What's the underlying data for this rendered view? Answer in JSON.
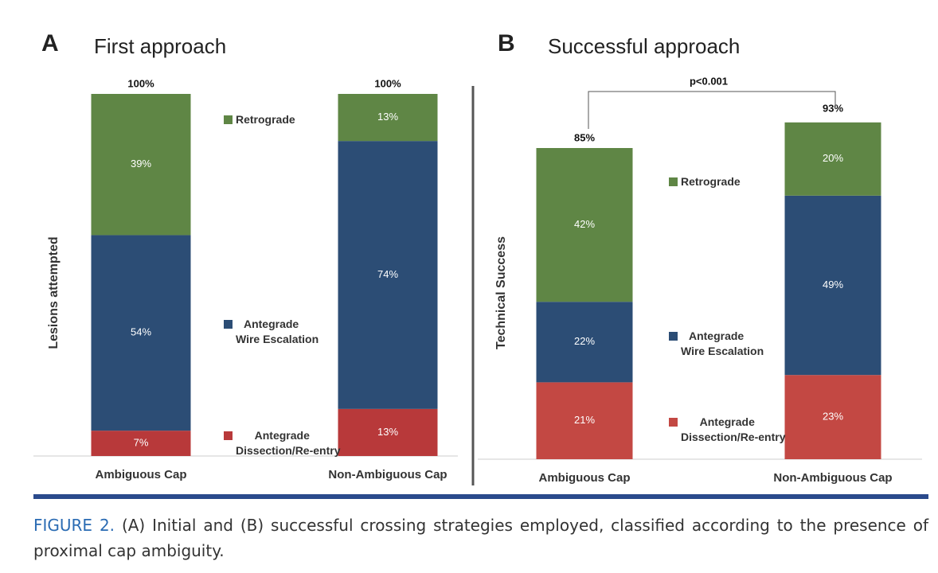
{
  "chart_data": [
    {
      "type": "bar",
      "stacked": true,
      "panel_label": "A",
      "title": "First approach",
      "y_label": "Lesions attempted",
      "categories": [
        "Ambiguous Cap",
        "Non-Ambiguous Cap"
      ],
      "ylim": [
        0,
        100
      ],
      "series": [
        {
          "name": "Antegrade\nDissection/Re-entry",
          "color": "#b8393a",
          "values": [
            7,
            13
          ],
          "value_labels": [
            "7%",
            "13%"
          ]
        },
        {
          "name": "Antegrade\nWire Escalation",
          "color": "#2c4d75",
          "values": [
            54,
            74
          ],
          "value_labels": [
            "54%",
            "74%"
          ]
        },
        {
          "name": "Retrograde",
          "color": "#5f8645",
          "values": [
            39,
            13
          ],
          "value_labels": [
            "39%",
            "13%"
          ]
        }
      ],
      "totals": {
        "values": [
          100,
          100
        ],
        "value_labels": [
          "100%",
          "100%"
        ]
      }
    },
    {
      "type": "bar",
      "stacked": true,
      "panel_label": "B",
      "title": "Successful approach",
      "y_label": "Technical Success",
      "categories": [
        "Ambiguous Cap",
        "Non-Ambiguous Cap"
      ],
      "ylim": [
        0,
        100
      ],
      "series": [
        {
          "name": "Antegrade\nDissection/Re-entry",
          "color": "#c34843",
          "values": [
            21,
            23
          ],
          "value_labels": [
            "21%",
            "23%"
          ]
        },
        {
          "name": "Antegrade\nWire Escalation",
          "color": "#2c4d75",
          "values": [
            22,
            49
          ],
          "value_labels": [
            "22%",
            "49%"
          ]
        },
        {
          "name": "Retrograde",
          "color": "#5f8645",
          "values": [
            42,
            20
          ],
          "value_labels": [
            "42%",
            "20%"
          ]
        }
      ],
      "totals": {
        "values": [
          85,
          93
        ],
        "value_labels": [
          "85%",
          "93%"
        ]
      },
      "annotation": "p<0.001"
    }
  ],
  "caption": {
    "label": "FIGURE 2.",
    "text": "(A) Initial and (B) successful crossing strategies employed, classified according to the presence of proximal cap ambiguity."
  }
}
